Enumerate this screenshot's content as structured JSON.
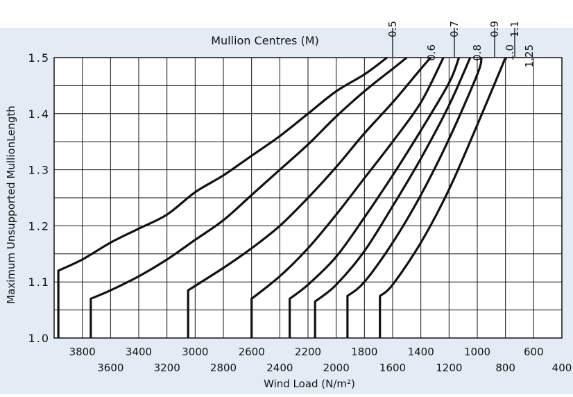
{
  "chart_data": {
    "type": "line",
    "title": "Mullion Centres (M)",
    "xlabel": "Wind Load (N/m²)",
    "ylabel": "Maximum Unsupported MullionLength",
    "xlim": [
      4000,
      400
    ],
    "ylim": [
      1.0,
      1.5
    ],
    "x_ticks_upper": [
      "3800",
      "3400",
      "3000",
      "2600",
      "2200",
      "1800",
      "1400",
      "1000",
      "600"
    ],
    "x_ticks_upper_values": [
      3800,
      3400,
      3000,
      2600,
      2200,
      1800,
      1400,
      1000,
      600
    ],
    "x_ticks_lower": [
      "3600",
      "3200",
      "2800",
      "2400",
      "2000",
      "1600",
      "1200",
      "800",
      "400"
    ],
    "x_ticks_lower_values": [
      3600,
      3200,
      2800,
      2400,
      2000,
      1600,
      1200,
      800,
      400
    ],
    "y_ticks": [
      "1.0",
      "1.1",
      "1.2",
      "1.3",
      "1.4",
      "1.5"
    ],
    "y_tick_values": [
      1.0,
      1.1,
      1.2,
      1.3,
      1.4,
      1.5
    ],
    "y_gridlines": [
      1.0,
      1.05,
      1.1,
      1.15,
      1.2,
      1.25,
      1.3,
      1.35,
      1.4,
      1.45,
      1.5
    ],
    "grid": true,
    "colors": {
      "background": "#e3ecf5",
      "plot": "#ffffff",
      "line": "#111111",
      "grid": "#111111"
    },
    "series": [
      {
        "name": "0.5",
        "points": [
          [
            3970,
            1.0
          ],
          [
            3970,
            1.12
          ],
          [
            3800,
            1.14
          ],
          [
            3600,
            1.17
          ],
          [
            3400,
            1.195
          ],
          [
            3200,
            1.22
          ],
          [
            3000,
            1.26
          ],
          [
            2800,
            1.29
          ],
          [
            2600,
            1.325
          ],
          [
            2400,
            1.36
          ],
          [
            2200,
            1.4
          ],
          [
            2000,
            1.44
          ],
          [
            1800,
            1.47
          ],
          [
            1640,
            1.5
          ]
        ]
      },
      {
        "name": "0.6",
        "points": [
          [
            3740,
            1.0
          ],
          [
            3740,
            1.07
          ],
          [
            3600,
            1.085
          ],
          [
            3400,
            1.11
          ],
          [
            3200,
            1.14
          ],
          [
            3000,
            1.175
          ],
          [
            2800,
            1.21
          ],
          [
            2600,
            1.255
          ],
          [
            2400,
            1.3
          ],
          [
            2200,
            1.345
          ],
          [
            2000,
            1.395
          ],
          [
            1800,
            1.44
          ],
          [
            1600,
            1.48
          ],
          [
            1500,
            1.5
          ]
        ]
      },
      {
        "name": "0.7",
        "points": [
          [
            3050,
            1.0
          ],
          [
            3050,
            1.085
          ],
          [
            2800,
            1.125
          ],
          [
            2600,
            1.16
          ],
          [
            2400,
            1.2
          ],
          [
            2200,
            1.25
          ],
          [
            2000,
            1.305
          ],
          [
            1800,
            1.365
          ],
          [
            1600,
            1.42
          ],
          [
            1400,
            1.48
          ],
          [
            1330,
            1.5
          ]
        ]
      },
      {
        "name": "0.8",
        "points": [
          [
            2600,
            1.0
          ],
          [
            2600,
            1.07
          ],
          [
            2400,
            1.11
          ],
          [
            2200,
            1.16
          ],
          [
            2000,
            1.22
          ],
          [
            1800,
            1.285
          ],
          [
            1600,
            1.35
          ],
          [
            1400,
            1.42
          ],
          [
            1240,
            1.5
          ]
        ]
      },
      {
        "name": "0.9",
        "points": [
          [
            2330,
            1.0
          ],
          [
            2330,
            1.07
          ],
          [
            2200,
            1.095
          ],
          [
            2000,
            1.145
          ],
          [
            1800,
            1.215
          ],
          [
            1600,
            1.29
          ],
          [
            1400,
            1.37
          ],
          [
            1200,
            1.455
          ],
          [
            1130,
            1.5
          ]
        ]
      },
      {
        "name": "1.0",
        "points": [
          [
            2150,
            1.0
          ],
          [
            2150,
            1.065
          ],
          [
            2000,
            1.095
          ],
          [
            1800,
            1.155
          ],
          [
            1600,
            1.235
          ],
          [
            1400,
            1.32
          ],
          [
            1200,
            1.415
          ],
          [
            1050,
            1.5
          ]
        ]
      },
      {
        "name": "1.1",
        "points": [
          [
            1920,
            1.0
          ],
          [
            1920,
            1.075
          ],
          [
            1800,
            1.1
          ],
          [
            1600,
            1.17
          ],
          [
            1400,
            1.255
          ],
          [
            1200,
            1.355
          ],
          [
            1000,
            1.47
          ],
          [
            970,
            1.5
          ]
        ]
      },
      {
        "name": "1.25",
        "points": [
          [
            1690,
            1.0
          ],
          [
            1690,
            1.075
          ],
          [
            1600,
            1.095
          ],
          [
            1400,
            1.17
          ],
          [
            1200,
            1.265
          ],
          [
            1000,
            1.38
          ],
          [
            800,
            1.5
          ]
        ]
      }
    ],
    "curve_labels": [
      "0.5",
      "0.6",
      "0.7",
      "0.8",
      "0.9",
      "1.0",
      "1.1",
      "1.25"
    ]
  }
}
